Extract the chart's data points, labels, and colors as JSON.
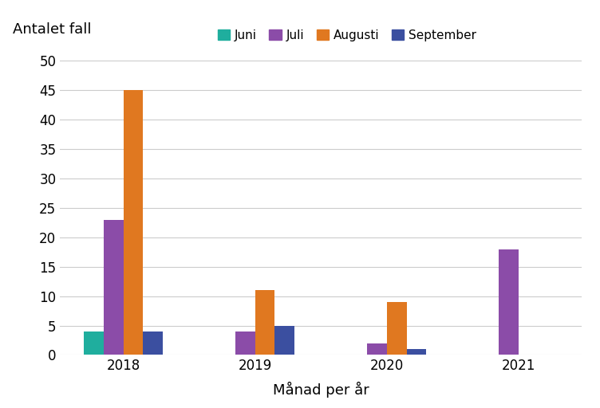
{
  "years": [
    "2018",
    "2019",
    "2020",
    "2021"
  ],
  "months": [
    "Juni",
    "Juli",
    "Augusti",
    "September"
  ],
  "colors": [
    "#1FAE9E",
    "#8B4CA8",
    "#E07820",
    "#3B4FA0"
  ],
  "values": {
    "Juni": [
      4,
      0,
      0,
      0
    ],
    "Juli": [
      23,
      4,
      2,
      18
    ],
    "Augusti": [
      45,
      11,
      9,
      0
    ],
    "September": [
      4,
      5,
      1,
      0
    ]
  },
  "ylabel": "Antalet fall",
  "xlabel": "Månad per år",
  "ylim": [
    0,
    52
  ],
  "yticks": [
    0,
    5,
    10,
    15,
    20,
    25,
    30,
    35,
    40,
    45,
    50
  ],
  "bar_width": 0.15,
  "background_color": "#ffffff",
  "grid_color": "#cccccc",
  "tick_fontsize": 12,
  "label_fontsize": 13
}
